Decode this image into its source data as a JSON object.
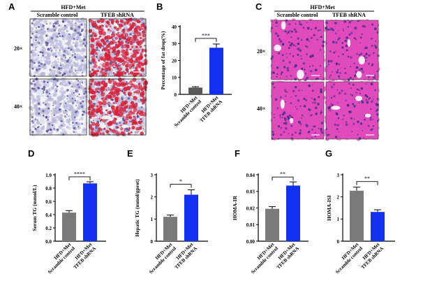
{
  "panels": {
    "A": {
      "letter": "A",
      "header": "HFD+Met",
      "col_labels": [
        "Scramble control",
        "TFEB shRNA"
      ],
      "row_labels": [
        "20×",
        "40×"
      ],
      "colors": {
        "tissue": "#b7b6d8",
        "nucleus": "#5a4f9e",
        "lipid": "#d6223a",
        "bg": "#f3f2f7"
      }
    },
    "C": {
      "letter": "C",
      "header": "HFD+Met",
      "col_labels": [
        "Scramble control",
        "TFEB shRNA"
      ],
      "row_labels": [
        "20×",
        "40×"
      ],
      "colors": {
        "tissue": "#e04bbc",
        "nucleus": "#4a2d8a",
        "vessel": "#f6eef8"
      }
    }
  },
  "chart_data": [
    {
      "panel": "B",
      "type": "bar",
      "categories": [
        [
          "HFD+Met",
          "Scramble control"
        ],
        [
          "HFD+Met",
          "TFEB shRNA"
        ]
      ],
      "values": [
        4,
        27.5
      ],
      "errors": [
        0.5,
        2.2
      ],
      "colors": [
        "#595959",
        "#1230f0"
      ],
      "ylabel": "Percentage of fat drop(%)",
      "ylim": [
        0,
        40
      ],
      "yticks": [
        "0",
        "10",
        "20",
        "30",
        "40"
      ],
      "significance": "***"
    },
    {
      "panel": "D",
      "type": "bar",
      "categories": [
        [
          "HFD+Met",
          "Scramble control"
        ],
        [
          "HFD+Met",
          "TFEB shRNA"
        ]
      ],
      "values": [
        0.43,
        0.87
      ],
      "errors": [
        0.03,
        0.025
      ],
      "colors": [
        "#7a7a7a",
        "#1230f0"
      ],
      "ylabel": "Serum TG (mmol/L)",
      "ylim": [
        0,
        1.0
      ],
      "yticks": [
        "0.0",
        "0.2",
        "0.4",
        "0.6",
        "0.8",
        "1.0"
      ],
      "significance": "****"
    },
    {
      "panel": "E",
      "type": "bar",
      "categories": [
        [
          "HFD+Met",
          "Scramble control"
        ],
        [
          "HFD+Met",
          "TFEB shRNA"
        ]
      ],
      "values": [
        1.1,
        2.1
      ],
      "errors": [
        0.08,
        0.22
      ],
      "colors": [
        "#7a7a7a",
        "#1230f0"
      ],
      "ylabel": "Hepatic TG (mmol/gprot)",
      "ylim": [
        0,
        3
      ],
      "yticks": [
        "0",
        "1",
        "2",
        "3"
      ],
      "significance": "*"
    },
    {
      "panel": "F",
      "type": "bar",
      "categories": [
        [
          "HFD+Met",
          "Scramble control"
        ],
        [
          "HFD+Met",
          "TFEB shRNA"
        ]
      ],
      "values": [
        0.0195,
        0.0335
      ],
      "errors": [
        0.0013,
        0.0022
      ],
      "colors": [
        "#7a7a7a",
        "#1230f0"
      ],
      "ylabel": "HOMA-IR",
      "ylim": [
        0,
        0.04
      ],
      "yticks": [
        "0.00",
        "0.01",
        "0.02",
        "0.03",
        "0.04"
      ],
      "significance": "**"
    },
    {
      "panel": "G",
      "type": "bar",
      "categories": [
        [
          "HFD+Met",
          "Scramble control"
        ],
        [
          "HFD+Met",
          "TFEB shRNA"
        ]
      ],
      "values": [
        2.28,
        1.32
      ],
      "errors": [
        0.16,
        0.1
      ],
      "colors": [
        "#7a7a7a",
        "#1230f0"
      ],
      "ylabel": "HOMA-ISI",
      "ylim": [
        0,
        3
      ],
      "yticks": [
        "0",
        "1",
        "2",
        "3"
      ],
      "significance": "**"
    }
  ]
}
